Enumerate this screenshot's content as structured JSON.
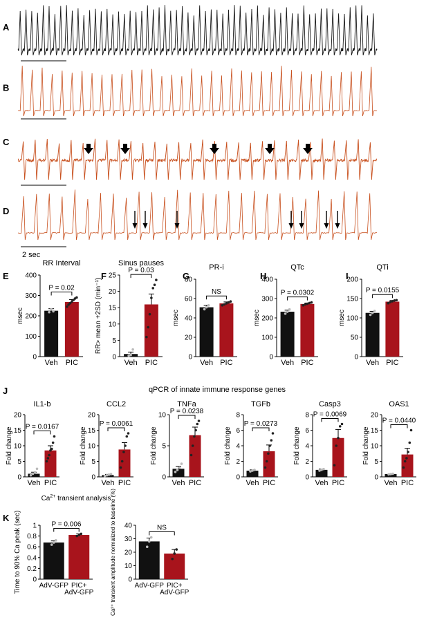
{
  "colors": {
    "veh": "#111111",
    "pic": "#a8141c",
    "trace_black": "#1a1a1a",
    "trace_orange": "#c8501e",
    "point_veh": "#bbbbbb",
    "point_pic": "#222222"
  },
  "ecg": {
    "panels": [
      {
        "label": "A",
        "color": "trace_black",
        "beats": 62,
        "noisy": true,
        "arrows": []
      },
      {
        "label": "B",
        "color": "trace_orange",
        "beats": 36,
        "noisy": false,
        "arrows": []
      },
      {
        "label": "C",
        "color": "trace_orange",
        "beats": 30,
        "noisy": true,
        "arrows": [
          "bold",
          "bold",
          "bold",
          "bold",
          "bold"
        ]
      },
      {
        "label": "D",
        "color": "trace_orange",
        "beats": 28,
        "noisy": false,
        "arrows": [
          "thin",
          "thin",
          "thin",
          "thin",
          "thin",
          "thin",
          "thin"
        ]
      }
    ],
    "scale_label": "2 sec"
  },
  "panel_labels": {
    "E": "E",
    "F": "F",
    "G": "G",
    "H": "H",
    "I": "I",
    "J": "J",
    "K": "K"
  },
  "section_titles": {
    "j": "qPCR of innate immune response genes",
    "k_pre": "Ca",
    "k_sup": "2+",
    "k_post": " transient analysis"
  },
  "chart_data": [
    {
      "id": "E",
      "type": "bar",
      "title": "RR Interval",
      "ylabel": "msec",
      "ylim": [
        0,
        400
      ],
      "yticks": [
        0,
        100,
        200,
        300,
        400
      ],
      "categories": [
        "Veh",
        "PIC"
      ],
      "values": [
        225,
        268
      ],
      "sem": [
        10,
        12
      ],
      "points": [
        [
          218,
          232,
          222
        ],
        [
          245,
          255,
          262,
          270,
          278,
          285,
          290
        ]
      ],
      "p_text": "P = 0.02"
    },
    {
      "id": "F",
      "type": "bar",
      "title": "Sinus pauses",
      "ylabel": "RR> mean +2SD (min⁻¹)",
      "ylim": [
        0,
        25
      ],
      "yticks": [
        0,
        5,
        10,
        15,
        20,
        25
      ],
      "categories": [
        "Veh",
        "PIC"
      ],
      "values": [
        0.8,
        16
      ],
      "sem": [
        0.6,
        3.2
      ],
      "points": [
        [
          0.3,
          0.5,
          2.2
        ],
        [
          6,
          9,
          13,
          18,
          21,
          22,
          23.5
        ]
      ],
      "p_text": "P = 0.03"
    },
    {
      "id": "G",
      "type": "bar",
      "title": "PR-i",
      "ylabel": "msec",
      "ylim": [
        0,
        80
      ],
      "yticks": [
        0,
        20,
        40,
        60,
        80
      ],
      "categories": [
        "Veh",
        "PIC"
      ],
      "values": [
        51,
        55
      ],
      "sem": [
        2,
        1.5
      ],
      "points": [
        [
          49,
          51,
          53
        ],
        [
          53,
          54,
          55,
          56,
          57
        ]
      ],
      "p_text": "NS"
    },
    {
      "id": "H",
      "type": "bar",
      "title": "QTc",
      "ylabel": "msec",
      "ylim": [
        0,
        400
      ],
      "yticks": [
        0,
        100,
        200,
        300,
        400
      ],
      "categories": [
        "Veh",
        "PIC"
      ],
      "values": [
        232,
        272
      ],
      "sem": [
        8,
        5
      ],
      "points": [
        [
          222,
          232,
          244
        ],
        [
          265,
          270,
          273,
          277,
          280
        ]
      ],
      "p_text": "P = 0.0302"
    },
    {
      "id": "I",
      "type": "bar",
      "title": "QTi",
      "ylabel": "msec",
      "ylim": [
        0,
        200
      ],
      "yticks": [
        0,
        50,
        100,
        150,
        200
      ],
      "categories": [
        "Veh",
        "PIC"
      ],
      "values": [
        113,
        142
      ],
      "sem": [
        4,
        3
      ],
      "points": [
        [
          108,
          113,
          118
        ],
        [
          138,
          141,
          143,
          145,
          146
        ]
      ],
      "p_text": "P = 0.0155"
    },
    {
      "id": "J1",
      "type": "bar",
      "title": "IL1-b",
      "ylabel": "Fold change",
      "ylim": [
        0,
        20
      ],
      "yticks": [
        0,
        5,
        10,
        15,
        20
      ],
      "categories": [
        "Veh",
        "PIC"
      ],
      "values": [
        1,
        8.5
      ],
      "sem": [
        0.5,
        1.5
      ],
      "points": [
        [
          0.5,
          1.0,
          1.5,
          2.6
        ],
        [
          5,
          6,
          7,
          8.5,
          9,
          11,
          13
        ]
      ],
      "p_text": "P = 0.0167"
    },
    {
      "id": "J2",
      "type": "bar",
      "title": "CCL2",
      "ylabel": "Fold change",
      "ylim": [
        0,
        20
      ],
      "yticks": [
        0,
        5,
        10,
        15,
        20
      ],
      "categories": [
        "Veh",
        "PIC"
      ],
      "values": [
        0.6,
        8.8
      ],
      "sem": [
        0.2,
        2.2
      ],
      "points": [
        [
          0.3,
          0.5,
          0.7,
          0.9
        ],
        [
          3,
          5,
          8,
          10,
          13,
          14
        ]
      ],
      "p_text": "P = 0.0061"
    },
    {
      "id": "J3",
      "type": "bar",
      "title": "TNFa",
      "ylabel": "Fold change",
      "ylim": [
        0,
        10
      ],
      "yticks": [
        0,
        5,
        10
      ],
      "categories": [
        "Veh",
        "PIC"
      ],
      "values": [
        1.3,
        6.7
      ],
      "sem": [
        0.4,
        1.3
      ],
      "points": [
        [
          0.8,
          1.1,
          1.5,
          2.1
        ],
        [
          3.5,
          5,
          6.5,
          7.5,
          8.5,
          9
        ]
      ],
      "p_text": "P = 0.0238"
    },
    {
      "id": "J4",
      "type": "bar",
      "title": "TGFb",
      "ylabel": "Fold change",
      "ylim": [
        0,
        8
      ],
      "yticks": [
        0,
        2,
        4,
        6,
        8
      ],
      "categories": [
        "Veh",
        "PIC"
      ],
      "values": [
        0.8,
        3.3
      ],
      "sem": [
        0.1,
        0.8
      ],
      "points": [
        [
          0.7,
          0.8,
          0.9
        ],
        [
          1.2,
          2,
          3,
          4,
          4.7,
          5.6
        ]
      ],
      "p_text": "P = 0.0273"
    },
    {
      "id": "J5",
      "type": "bar",
      "title": "Casp3",
      "ylabel": "Fold change",
      "ylim": [
        0,
        8
      ],
      "yticks": [
        0,
        2,
        4,
        6,
        8
      ],
      "categories": [
        "Veh",
        "PIC"
      ],
      "values": [
        0.9,
        5
      ],
      "sem": [
        0.1,
        1.1
      ],
      "points": [
        [
          0.8,
          0.9,
          1.0
        ],
        [
          1.5,
          4,
          5,
          6.5,
          6.8
        ]
      ],
      "p_text": "P = 0.0069"
    },
    {
      "id": "J6",
      "type": "bar",
      "title": "OAS1",
      "ylabel": "Fold change",
      "ylim": [
        0,
        20
      ],
      "yticks": [
        0,
        5,
        10,
        15,
        20
      ],
      "categories": [
        "Veh",
        "PIC"
      ],
      "values": [
        0.9,
        7.2
      ],
      "sem": [
        0.1,
        2
      ],
      "points": [
        [
          0.8,
          0.9,
          1.0
        ],
        [
          3,
          5,
          6,
          8,
          11,
          15
        ]
      ],
      "p_text": "P = 0.0440"
    },
    {
      "id": "K1",
      "type": "bar",
      "title": "",
      "ylabel": "Time to 90% Ca peak (sec)",
      "ylim": [
        0,
        1.0
      ],
      "yticks": [
        0.0,
        0.2,
        0.4,
        0.6,
        0.8,
        1.0
      ],
      "categories": [
        "AdV-GFP",
        "PIC+\nAdV-GFP"
      ],
      "values": [
        0.68,
        0.82
      ],
      "sem": [
        0.03,
        0.02
      ],
      "points": [
        [
          0.64,
          0.68,
          0.72
        ],
        [
          0.8,
          0.82,
          0.84
        ]
      ],
      "p_text": "P = 0.006"
    },
    {
      "id": "K2",
      "type": "bar",
      "title": "",
      "ylabel": "Ca²⁺ transient amplitude normalized to baseline (%)",
      "ylim": [
        0,
        40
      ],
      "yticks": [
        0,
        10,
        20,
        30,
        40
      ],
      "categories": [
        "AdV-GFP",
        "PIC+\nAdV-GFP"
      ],
      "values": [
        28,
        19
      ],
      "sem": [
        2.5,
        3
      ],
      "points": [
        [
          24,
          28,
          31
        ],
        [
          15,
          19,
          22
        ]
      ],
      "p_text": "NS"
    }
  ]
}
